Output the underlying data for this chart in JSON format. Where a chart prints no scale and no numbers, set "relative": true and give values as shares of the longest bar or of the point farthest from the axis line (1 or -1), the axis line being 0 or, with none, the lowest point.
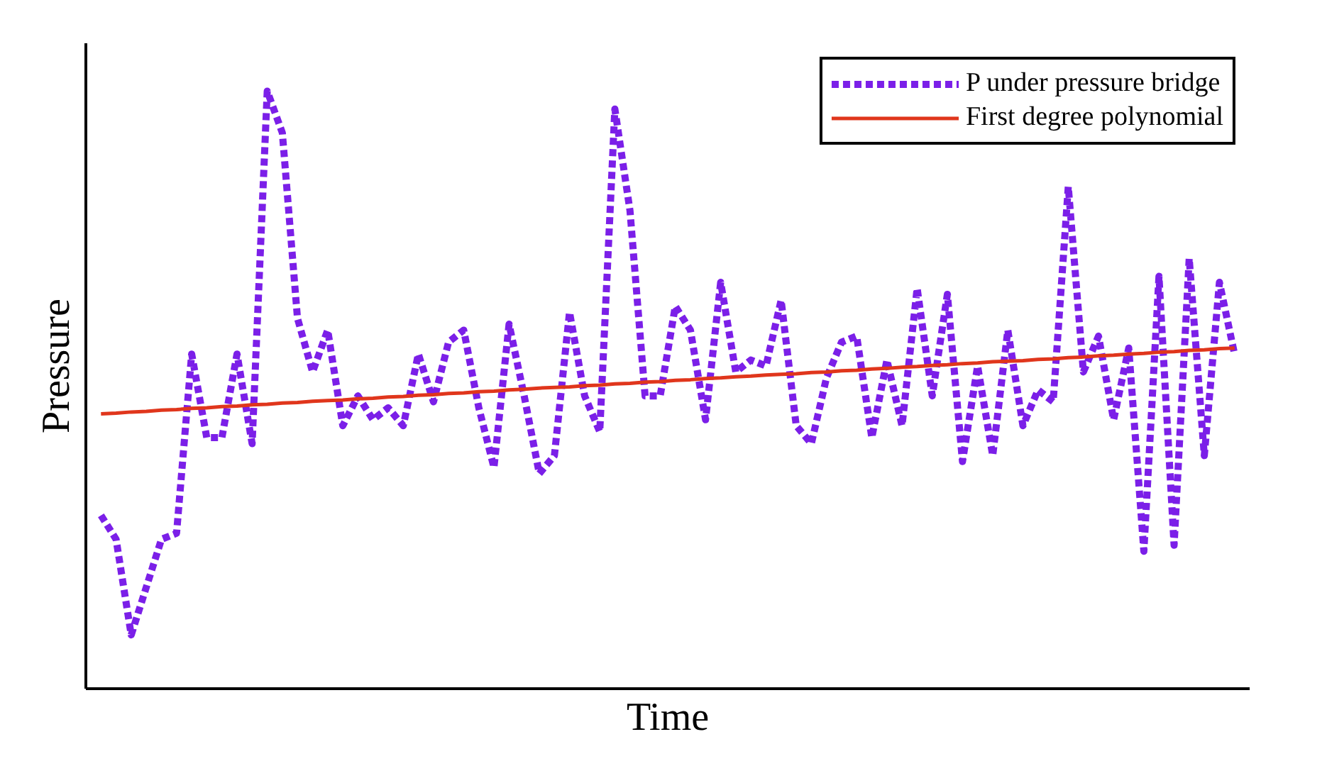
{
  "chart_data": {
    "type": "line",
    "xlabel": "Time",
    "ylabel": "Pressure",
    "relative": true,
    "legend": "top right",
    "categories": [
      null,
      null,
      null,
      null,
      null,
      null,
      null,
      null,
      null,
      null,
      null,
      null,
      null,
      null,
      null,
      null,
      null,
      null,
      null,
      null,
      null,
      null,
      null,
      null,
      null,
      null,
      null,
      null,
      null,
      null,
      null,
      null,
      null,
      null,
      null,
      null,
      null,
      null,
      null,
      null,
      null,
      null,
      null,
      null,
      null,
      null,
      null,
      null,
      null,
      null,
      null,
      null,
      null,
      null,
      null,
      null,
      null,
      null,
      null,
      null,
      null,
      null,
      null,
      null,
      null,
      null,
      null,
      null,
      null,
      null,
      null,
      null,
      null,
      null,
      null,
      null
    ],
    "series": [
      {
        "name": "P under pressure bridge",
        "color": "#7b1fe8",
        "line_style": "dashed",
        "values": [
          0.29,
          0.25,
          0.09,
          0.17,
          0.25,
          0.26,
          0.56,
          0.42,
          0.42,
          0.56,
          0.41,
          1.0,
          0.93,
          0.62,
          0.53,
          0.6,
          0.44,
          0.49,
          0.45,
          0.47,
          0.44,
          0.56,
          0.48,
          0.58,
          0.6,
          0.47,
          0.37,
          0.61,
          0.49,
          0.36,
          0.39,
          0.63,
          0.49,
          0.43,
          0.97,
          0.8,
          0.49,
          0.49,
          0.64,
          0.6,
          0.45,
          0.68,
          0.53,
          0.55,
          0.54,
          0.65,
          0.44,
          0.41,
          0.52,
          0.58,
          0.59,
          0.42,
          0.55,
          0.44,
          0.67,
          0.49,
          0.66,
          0.38,
          0.54,
          0.39,
          0.6,
          0.44,
          0.5,
          0.48,
          0.84,
          0.53,
          0.59,
          0.45,
          0.57,
          0.23,
          0.69,
          0.24,
          0.72,
          0.39,
          0.68,
          0.56
        ]
      },
      {
        "name": "First degree polynomial",
        "color": "#e0361c",
        "line_style": "solid",
        "values": [
          0.46,
          0.461,
          0.463,
          0.464,
          0.466,
          0.467,
          0.469,
          0.47,
          0.472,
          0.473,
          0.475,
          0.476,
          0.478,
          0.479,
          0.481,
          0.482,
          0.483,
          0.485,
          0.486,
          0.488,
          0.489,
          0.491,
          0.492,
          0.494,
          0.495,
          0.497,
          0.498,
          0.5,
          0.501,
          0.503,
          0.504,
          0.505,
          0.507,
          0.508,
          0.51,
          0.511,
          0.513,
          0.514,
          0.516,
          0.517,
          0.519,
          0.52,
          0.522,
          0.523,
          0.525,
          0.526,
          0.527,
          0.529,
          0.53,
          0.532,
          0.533,
          0.535,
          0.536,
          0.538,
          0.539,
          0.541,
          0.542,
          0.544,
          0.545,
          0.547,
          0.548,
          0.549,
          0.551,
          0.552,
          0.554,
          0.555,
          0.557,
          0.558,
          0.56,
          0.561,
          0.563,
          0.564,
          0.566,
          0.567,
          0.569,
          0.57
        ]
      }
    ]
  }
}
